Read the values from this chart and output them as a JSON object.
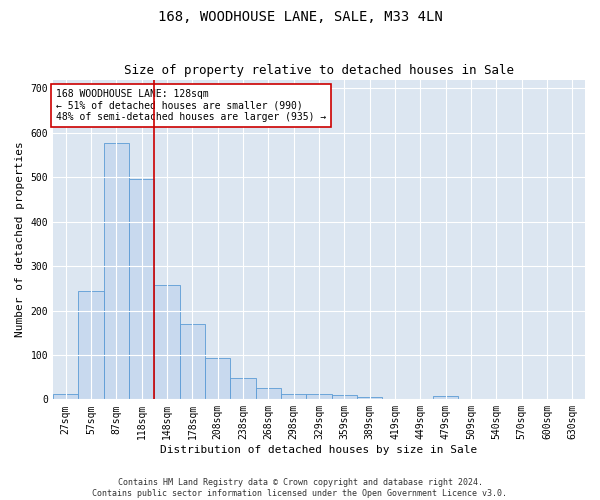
{
  "title": "168, WOODHOUSE LANE, SALE, M33 4LN",
  "subtitle": "Size of property relative to detached houses in Sale",
  "xlabel": "Distribution of detached houses by size in Sale",
  "ylabel": "Number of detached properties",
  "bar_color": "#c8d9ee",
  "bar_edge_color": "#5b9bd5",
  "bg_color": "#dce6f1",
  "bins": [
    "27sqm",
    "57sqm",
    "87sqm",
    "118sqm",
    "148sqm",
    "178sqm",
    "208sqm",
    "238sqm",
    "268sqm",
    "298sqm",
    "329sqm",
    "359sqm",
    "389sqm",
    "419sqm",
    "449sqm",
    "479sqm",
    "509sqm",
    "540sqm",
    "570sqm",
    "600sqm",
    "630sqm"
  ],
  "values": [
    13,
    243,
    577,
    497,
    258,
    170,
    92,
    48,
    25,
    13,
    12,
    10,
    6,
    0,
    0,
    7,
    0,
    0,
    0,
    0,
    0
  ],
  "vline_x": 3.5,
  "vline_color": "#cc0000",
  "annotation_text": "168 WOODHOUSE LANE: 128sqm\n← 51% of detached houses are smaller (990)\n48% of semi-detached houses are larger (935) →",
  "annotation_box_color": "#ffffff",
  "annotation_box_edge": "#cc0000",
  "footer_line1": "Contains HM Land Registry data © Crown copyright and database right 2024.",
  "footer_line2": "Contains public sector information licensed under the Open Government Licence v3.0.",
  "ylim": [
    0,
    720
  ],
  "yticks": [
    0,
    100,
    200,
    300,
    400,
    500,
    600,
    700
  ],
  "title_fontsize": 10,
  "subtitle_fontsize": 9,
  "ylabel_fontsize": 8,
  "xlabel_fontsize": 8,
  "tick_fontsize": 7,
  "annot_fontsize": 7,
  "footer_fontsize": 6
}
